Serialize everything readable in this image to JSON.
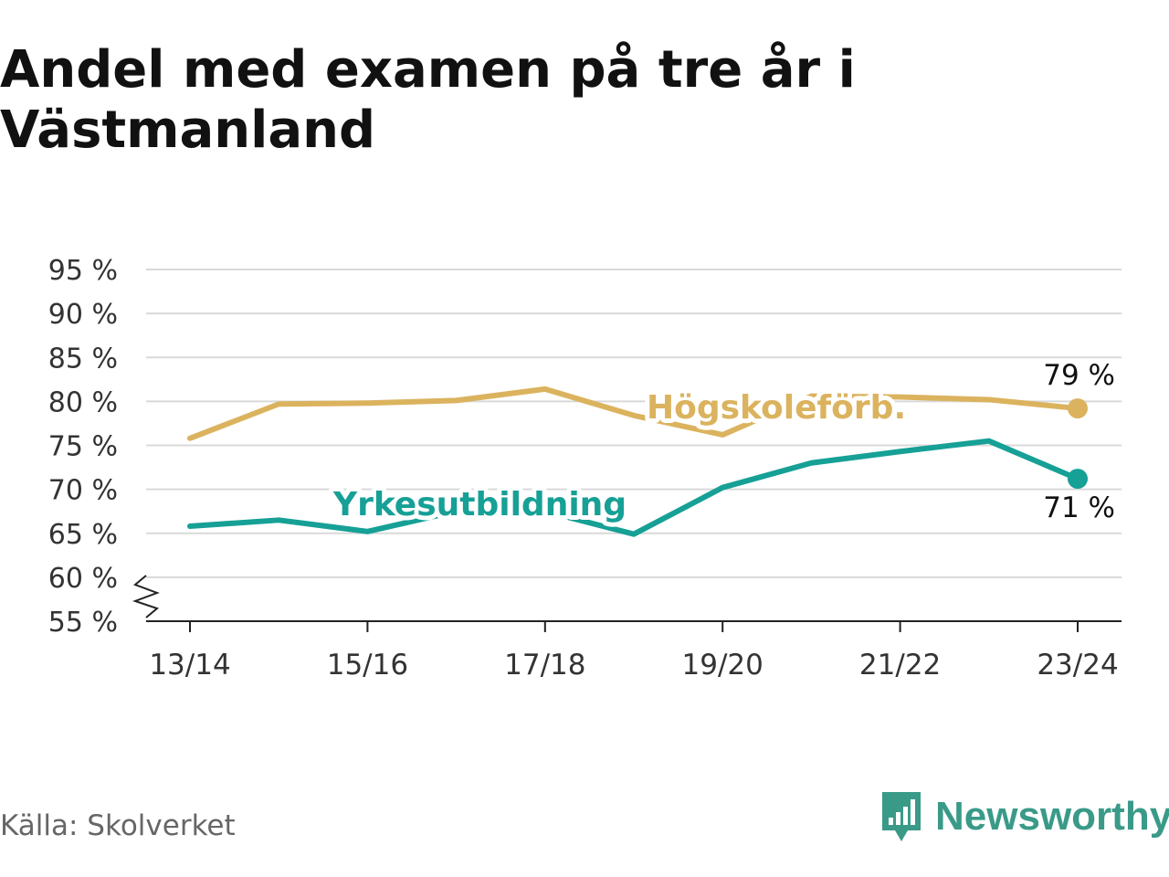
{
  "title": "Andel med examen på tre år i Västmanland",
  "source": "Källa: Skolverket",
  "brand": {
    "name": "Newsworthy",
    "icon": "newsworthy-logo-icon",
    "color": "#3a9a88"
  },
  "chart_data": {
    "type": "line",
    "x": [
      "13/14",
      "14/15",
      "15/16",
      "16/17",
      "17/18",
      "18/19",
      "19/20",
      "20/21",
      "21/22",
      "22/23",
      "23/24"
    ],
    "x_tick_labels": [
      "13/14",
      "15/16",
      "17/18",
      "19/20",
      "21/22",
      "23/24"
    ],
    "y_ticks": [
      55,
      60,
      65,
      70,
      75,
      80,
      85,
      90,
      95
    ],
    "y_tick_labels": [
      "55 %",
      "60 %",
      "65 %",
      "70 %",
      "75 %",
      "80 %",
      "85 %",
      "90 %",
      "95 %"
    ],
    "ylim": [
      55,
      95
    ],
    "axis_break": true,
    "grid": true,
    "series": [
      {
        "name": "Högskoleförb.",
        "color": "#dbb35e",
        "values": [
          75.8,
          79.7,
          79.8,
          80.1,
          81.4,
          78.4,
          76.2,
          80.6,
          80.5,
          80.2,
          79.2
        ],
        "end_label": "79 %"
      },
      {
        "name": "Yrkesutbildning",
        "color": "#16a096",
        "values": [
          65.8,
          66.5,
          65.2,
          67.5,
          67.5,
          64.9,
          70.2,
          73.0,
          74.3,
          75.5,
          71.2
        ],
        "end_label": "71 %"
      }
    ]
  }
}
